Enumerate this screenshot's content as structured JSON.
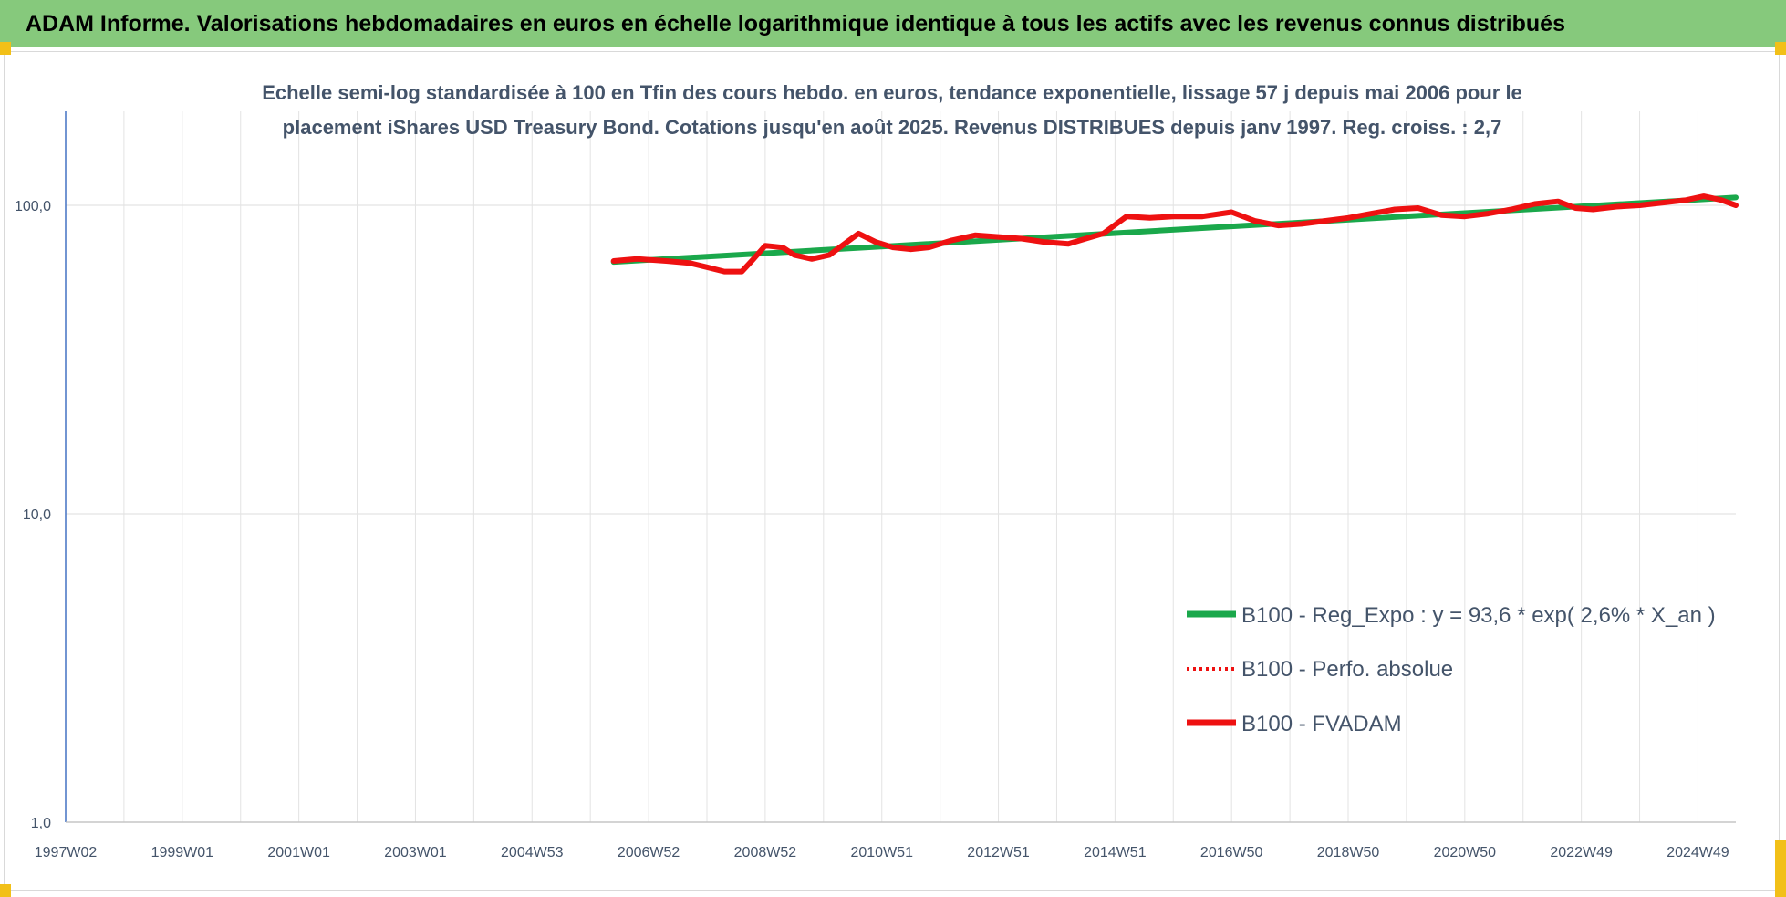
{
  "banner": {
    "title": "ADAM Informe. Valorisations hebdomadaires en euros en échelle logarithmique identique à tous les actifs avec les revenus connus distribués"
  },
  "colors": {
    "banner_bg": "#86c97c",
    "trend": "#1aa84b",
    "fvadam": "#ee1111",
    "perfo": "#ee1111",
    "text": "#44546a",
    "grid": "#e3e3e3",
    "corner_marks": "#f2c018"
  },
  "chart_data": {
    "type": "line",
    "title": [
      "Echelle semi-log standardisée à 100 en Tfin des cours hebdo. en euros, tendance exponentielle, lissage 57 j depuis mai 2006 pour le",
      "placement iShares USD Treasury Bond. Cotations jusqu'en août 2025. Revenus DISTRIBUES depuis janv 1997. Reg. croiss. : 2,7"
    ],
    "y_scale": "log",
    "ylim": [
      1,
      100
    ],
    "y_ticks": [
      {
        "value": 100,
        "label": "100,0"
      },
      {
        "value": 10,
        "label": "10,0"
      },
      {
        "value": 1,
        "label": "1,0"
      }
    ],
    "x_range": [
      1997.0,
      2025.65
    ],
    "x_ticks": [
      {
        "value": 1997.0,
        "label": "1997W02"
      },
      {
        "value": 1999.0,
        "label": "1999W01"
      },
      {
        "value": 2001.0,
        "label": "2001W01"
      },
      {
        "value": 2003.0,
        "label": "2003W01"
      },
      {
        "value": 2005.0,
        "label": "2004W53"
      },
      {
        "value": 2007.0,
        "label": "2006W52"
      },
      {
        "value": 2009.0,
        "label": "2008W52"
      },
      {
        "value": 2011.0,
        "label": "2010W51"
      },
      {
        "value": 2013.0,
        "label": "2012W51"
      },
      {
        "value": 2015.0,
        "label": "2014W51"
      },
      {
        "value": 2017.0,
        "label": "2016W50"
      },
      {
        "value": 2019.0,
        "label": "2018W50"
      },
      {
        "value": 2021.0,
        "label": "2020W50"
      },
      {
        "value": 2023.0,
        "label": "2022W49"
      },
      {
        "value": 2025.0,
        "label": "2024W49"
      }
    ],
    "grid": {
      "horizontal": true,
      "vertical": true
    },
    "legend_position": "bottom-right",
    "series": [
      {
        "name": "B100 - Reg_Expo : y = 93,6 * exp( 2,6% *  X_an )",
        "style": "solid",
        "color": "#1aa84b",
        "x": [
          2006.4,
          2025.65
        ],
        "y": [
          65.5,
          106
        ]
      },
      {
        "name": "B100 - Perfo. absolue",
        "style": "dotted",
        "color": "#ee1111",
        "x": [],
        "y": []
      },
      {
        "name": "B100 - FVADAM",
        "style": "solid",
        "color": "#ee1111",
        "x": [
          2006.4,
          2006.8,
          2007.3,
          2007.7,
          2008.0,
          2008.3,
          2008.6,
          2008.8,
          2009.0,
          2009.3,
          2009.5,
          2009.8,
          2010.1,
          2010.4,
          2010.6,
          2010.9,
          2011.2,
          2011.5,
          2011.8,
          2012.2,
          2012.6,
          2013.0,
          2013.4,
          2013.8,
          2014.2,
          2014.5,
          2014.8,
          2015.2,
          2015.6,
          2016.0,
          2016.5,
          2017.0,
          2017.4,
          2017.8,
          2018.2,
          2018.6,
          2019.0,
          2019.4,
          2019.8,
          2020.2,
          2020.6,
          2021.0,
          2021.4,
          2021.8,
          2022.2,
          2022.6,
          2022.9,
          2023.2,
          2023.6,
          2024.0,
          2024.4,
          2024.8,
          2025.1,
          2025.4,
          2025.65
        ],
        "y": [
          66,
          67,
          66,
          65,
          63,
          61,
          61,
          67,
          74,
          73,
          69,
          67,
          69,
          76,
          81,
          76,
          73,
          72,
          73,
          77,
          80,
          79,
          78,
          76,
          75,
          78,
          81,
          92,
          91,
          92,
          92,
          95,
          89,
          86,
          87,
          89,
          91,
          94,
          97,
          98,
          93,
          92,
          94,
          97,
          101,
          103,
          98,
          97,
          99,
          100,
          102,
          104,
          107,
          104,
          100
        ]
      }
    ]
  }
}
